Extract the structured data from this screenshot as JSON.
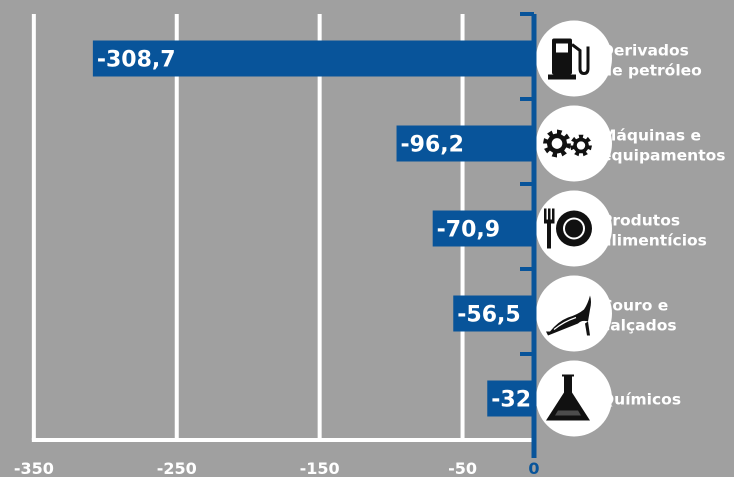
{
  "chart_data": {
    "type": "bar",
    "orientation": "horizontal",
    "categories": [
      [
        "Derivados",
        "de petróleo"
      ],
      [
        "Máquinas e",
        "equipamentos"
      ],
      [
        "Produtos",
        "alimentícios"
      ],
      [
        "Couro e",
        "calçados"
      ],
      [
        "Químicos"
      ]
    ],
    "values": [
      -308.7,
      -96.2,
      -70.9,
      -56.5,
      -32.7
    ],
    "value_labels": [
      "-308,7",
      "-96,2",
      "-70,9",
      "-56,5",
      "-32,7"
    ],
    "icons": [
      "fuel-pump-icon",
      "gears-icon",
      "plate-cutlery-icon",
      "high-heel-shoe-icon",
      "flask-icon"
    ],
    "x_ticks": [
      -350,
      -250,
      -150,
      -50,
      0
    ],
    "x_tick_labels": [
      "-350",
      "-250",
      "-150",
      "-50",
      "0"
    ],
    "xlim": [
      -350,
      0
    ],
    "grid": true,
    "colors": {
      "background": "#a0a0a0",
      "bar": "#08549a",
      "axis": "#08549a",
      "grid": "#ffffff",
      "tick_label": "#ffffff",
      "zero_label": "#08549a",
      "bar_label": "#ffffff",
      "icon_circle": "#ffffff",
      "icon": "#111111",
      "category_label": "#ffffff"
    }
  }
}
